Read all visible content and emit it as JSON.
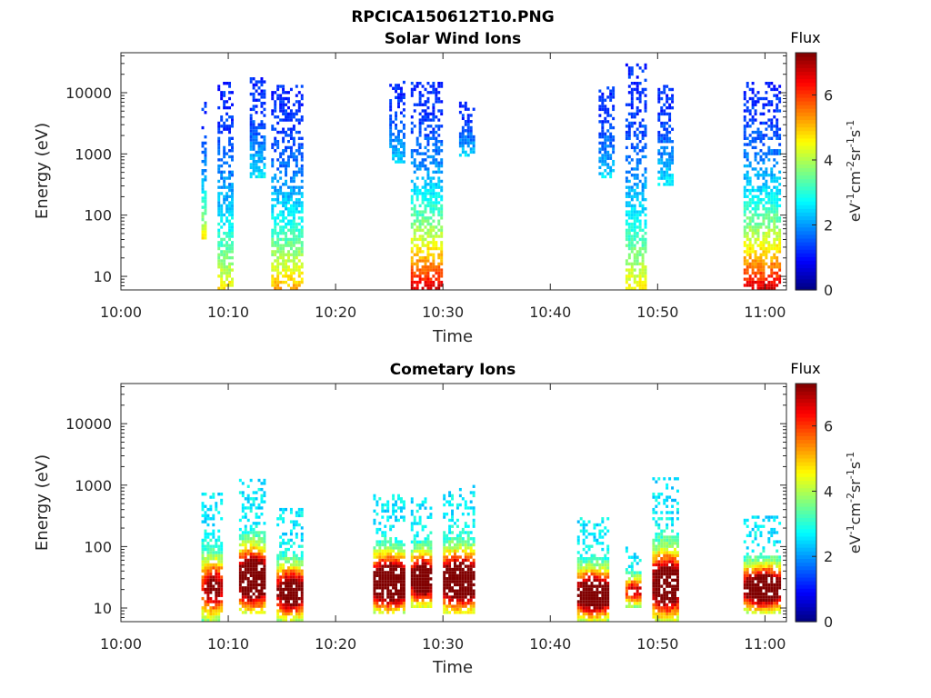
{
  "title": "RPCICA150612T10.PNG",
  "chart_data": [
    {
      "type": "heatmap",
      "title": "Solar Wind Ions",
      "xlabel": "Time",
      "ylabel": "Energy (eV)",
      "x_ticks": [
        "10:00",
        "10:10",
        "10:20",
        "10:30",
        "10:40",
        "10:50",
        "11:00"
      ],
      "xlim": [
        "10:00",
        "11:02"
      ],
      "y_scale": "log",
      "y_ticks": [
        "10",
        "100",
        "1000",
        "10000"
      ],
      "ylim": [
        6,
        45000
      ],
      "colorbar": {
        "title": "Flux",
        "label": "eV-1cm-2sr-1s-1",
        "ticks": [
          "0",
          "2",
          "4",
          "6"
        ],
        "range": [
          0,
          7.3
        ],
        "colormap": "jet"
      },
      "clusters": [
        {
          "t_start": "10:07.5",
          "t_end": "10:08.0",
          "e_low": 40,
          "e_high": 7000,
          "flux_peak": 3.5
        },
        {
          "t_start": "10:09.0",
          "t_end": "10:10.5",
          "e_low": 6,
          "e_high": 15000,
          "flux_peak": 3.5
        },
        {
          "t_start": "10:12.0",
          "t_end": "10:13.5",
          "e_low": 400,
          "e_high": 16000,
          "flux_peak": 1.5
        },
        {
          "t_start": "10:14.0",
          "t_end": "10:17.0",
          "e_low": 6,
          "e_high": 12000,
          "flux_peak": 4.0
        },
        {
          "t_start": "10:25.0",
          "t_end": "10:26.5",
          "e_low": 700,
          "e_high": 14000,
          "flux_peak": 1.3
        },
        {
          "t_start": "10:27.0",
          "t_end": "10:30.0",
          "e_low": 6,
          "e_high": 15000,
          "flux_peak": 5.5
        },
        {
          "t_start": "10:31.5",
          "t_end": "10:33.0",
          "e_low": 900,
          "e_high": 7000,
          "flux_peak": 1.3
        },
        {
          "t_start": "10:44.5",
          "t_end": "10:46.0",
          "e_low": 400,
          "e_high": 12000,
          "flux_peak": 1.3
        },
        {
          "t_start": "10:47.0",
          "t_end": "10:49.0",
          "e_low": 6,
          "e_high": 28000,
          "flux_peak": 3.5
        },
        {
          "t_start": "10:50.0",
          "t_end": "10:51.5",
          "e_low": 300,
          "e_high": 12000,
          "flux_peak": 1.5
        },
        {
          "t_start": "10:58.0",
          "t_end": "11:01.5",
          "e_low": 6,
          "e_high": 15000,
          "flux_peak": 5.5
        }
      ]
    },
    {
      "type": "heatmap",
      "title": "Cometary Ions",
      "xlabel": "Time",
      "ylabel": "Energy (eV)",
      "x_ticks": [
        "10:00",
        "10:10",
        "10:20",
        "10:30",
        "10:40",
        "10:50",
        "11:00"
      ],
      "xlim": [
        "10:00",
        "11:02"
      ],
      "y_scale": "log",
      "y_ticks": [
        "10",
        "100",
        "1000",
        "10000"
      ],
      "ylim": [
        6,
        45000
      ],
      "colorbar": {
        "title": "Flux",
        "label": "eV-1cm-2sr-1s-1",
        "ticks": [
          "0",
          "2",
          "4",
          "6"
        ],
        "range": [
          0,
          7.3
        ],
        "colormap": "jet"
      },
      "clusters": [
        {
          "t_start": "10:07.5",
          "t_end": "10:09.5",
          "e_low": 6,
          "e_high": 700,
          "flux_peak": 5.0
        },
        {
          "t_start": "10:11.0",
          "t_end": "10:13.5",
          "e_low": 8,
          "e_high": 1200,
          "flux_peak": 7.0
        },
        {
          "t_start": "10:14.5",
          "t_end": "10:17.0",
          "e_low": 6,
          "e_high": 400,
          "flux_peak": 6.0
        },
        {
          "t_start": "10:23.5",
          "t_end": "10:26.5",
          "e_low": 8,
          "e_high": 700,
          "flux_peak": 7.2
        },
        {
          "t_start": "10:27.0",
          "t_end": "10:29.0",
          "e_low": 10,
          "e_high": 600,
          "flux_peak": 6.5
        },
        {
          "t_start": "10:30.0",
          "t_end": "10:33.0",
          "e_low": 8,
          "e_high": 900,
          "flux_peak": 7.0
        },
        {
          "t_start": "10:42.5",
          "t_end": "10:45.5",
          "e_low": 6,
          "e_high": 300,
          "flux_peak": 6.5
        },
        {
          "t_start": "10:47.0",
          "t_end": "10:48.5",
          "e_low": 10,
          "e_high": 100,
          "flux_peak": 4.5
        },
        {
          "t_start": "10:49.5",
          "t_end": "10:52.0",
          "e_low": 6,
          "e_high": 1200,
          "flux_peak": 6.5
        },
        {
          "t_start": "10:58.0",
          "t_end": "11:01.5",
          "e_low": 8,
          "e_high": 300,
          "flux_peak": 6.5
        }
      ]
    }
  ]
}
